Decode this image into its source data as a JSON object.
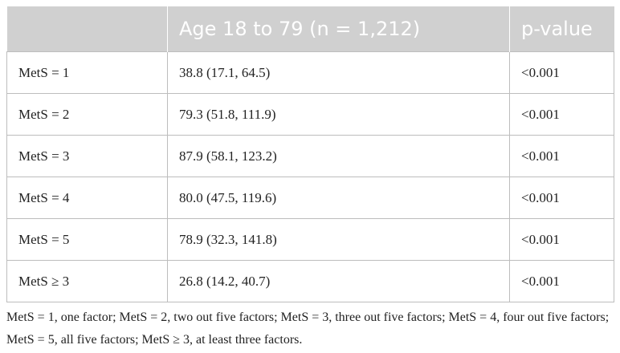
{
  "table": {
    "header": [
      "Age 18 to 79 (n = 1,212)",
      "p-value"
    ],
    "rows": [
      [
        "MetS = 1",
        "38.8 (17.1, 64.5)",
        "<0.001"
      ],
      [
        "MetS = 2",
        "79.3 (51.8, 111.9)",
        "<0.001"
      ],
      [
        "MetS = 3",
        "87.9 (58.1, 123.2)",
        "<0.001"
      ],
      [
        "MetS = 4",
        "80.0 (47.5, 119.6)",
        "<0.001"
      ],
      [
        "MetS = 5",
        "78.9 (32.3, 141.8)",
        "<0.001"
      ],
      [
        "MetS ≥ 3",
        "26.8 (14.2, 40.7)",
        "<0.001"
      ]
    ]
  },
  "footnote": "MetS = 1, one factor; MetS = 2, two out five factors; MetS = 3, three out five factors; MetS = 4, four out five factors; MetS = 5, all five factors; MetS ≥ 3, at least three factors."
}
